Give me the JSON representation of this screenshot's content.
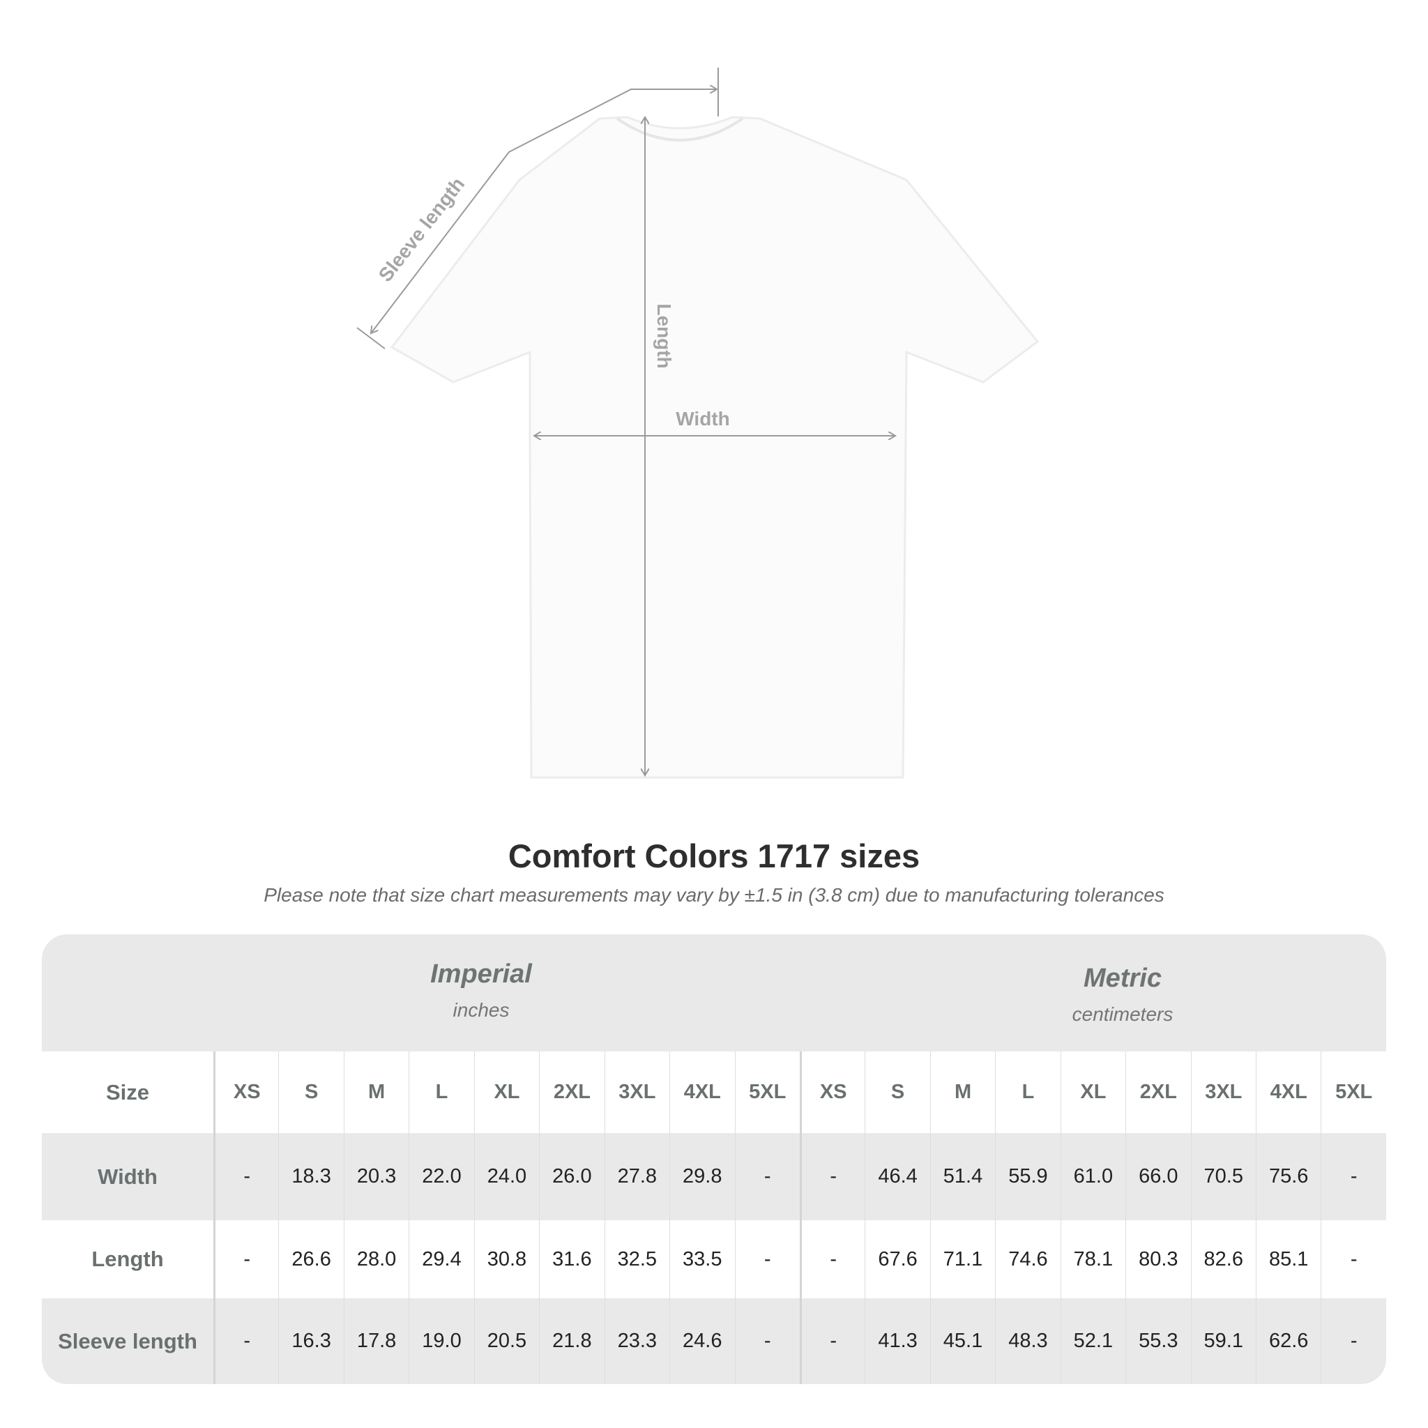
{
  "diagram": {
    "labels": {
      "sleeve": "Sleeve length",
      "length": "Length",
      "width": "Width"
    },
    "line_color": "#9a9a9a"
  },
  "title": "Comfort Colors 1717 sizes",
  "note": "Please note that size chart measurements may vary by ±1.5 in (3.8 cm) due to manufacturing tolerances",
  "table": {
    "imperial": {
      "name": "Imperial",
      "unit": "inches"
    },
    "metric": {
      "name": "Metric",
      "unit": "centimeters"
    },
    "size_label": "Size",
    "sizes": [
      "XS",
      "S",
      "M",
      "L",
      "XL",
      "2XL",
      "3XL",
      "4XL",
      "5XL"
    ],
    "rows": [
      {
        "label": "Width",
        "imperial": [
          "-",
          "18.3",
          "20.3",
          "22.0",
          "24.0",
          "26.0",
          "27.8",
          "29.8",
          "-"
        ],
        "metric": [
          "-",
          "46.4",
          "51.4",
          "55.9",
          "61.0",
          "66.0",
          "70.5",
          "75.6",
          "-"
        ]
      },
      {
        "label": "Length",
        "imperial": [
          "-",
          "26.6",
          "28.0",
          "29.4",
          "30.8",
          "31.6",
          "32.5",
          "33.5",
          "-"
        ],
        "metric": [
          "-",
          "67.6",
          "71.1",
          "74.6",
          "78.1",
          "80.3",
          "82.6",
          "85.1",
          "-"
        ]
      },
      {
        "label": "Sleeve length",
        "imperial": [
          "-",
          "16.3",
          "17.8",
          "19.0",
          "20.5",
          "21.8",
          "23.3",
          "24.6",
          "-"
        ],
        "metric": [
          "-",
          "41.3",
          "45.1",
          "48.3",
          "52.1",
          "55.3",
          "59.1",
          "62.6",
          "-"
        ]
      }
    ]
  }
}
